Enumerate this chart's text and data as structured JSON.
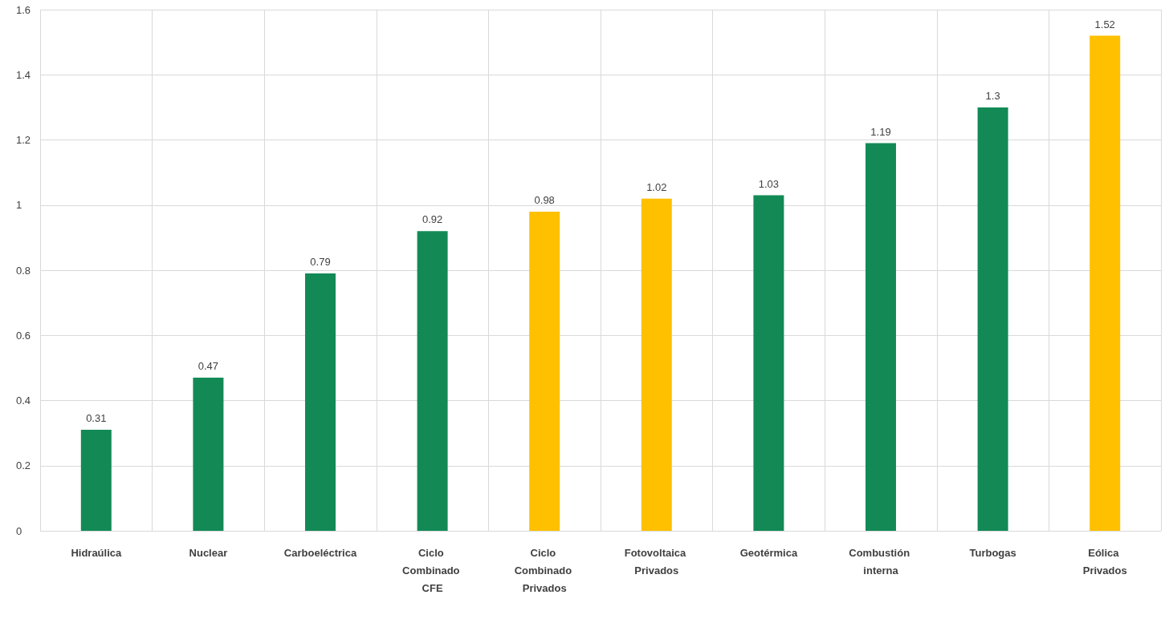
{
  "chart_data": {
    "type": "bar",
    "categories": [
      "Hidraúlica",
      "Nuclear",
      "Carboeléctrica",
      "Ciclo Combinado CFE",
      "Ciclo Combinado Privados",
      "Fotovoltaica Privados",
      "Geotérmica",
      "Combustión interna",
      "Turbogas",
      "Eólica Privados"
    ],
    "values": [
      0.31,
      0.47,
      0.79,
      0.92,
      0.98,
      1.02,
      1.03,
      1.19,
      1.3,
      1.52
    ],
    "colors": [
      "#138a56",
      "#138a56",
      "#138a56",
      "#138a56",
      "#ffc000",
      "#ffc000",
      "#138a56",
      "#138a56",
      "#138a56",
      "#ffc000"
    ],
    "ylim": [
      0,
      1.6
    ],
    "yticks": [
      0,
      0.2,
      0.4,
      0.6,
      0.8,
      1,
      1.2,
      1.4,
      1.6
    ],
    "grid": true,
    "data_labels": true
  }
}
